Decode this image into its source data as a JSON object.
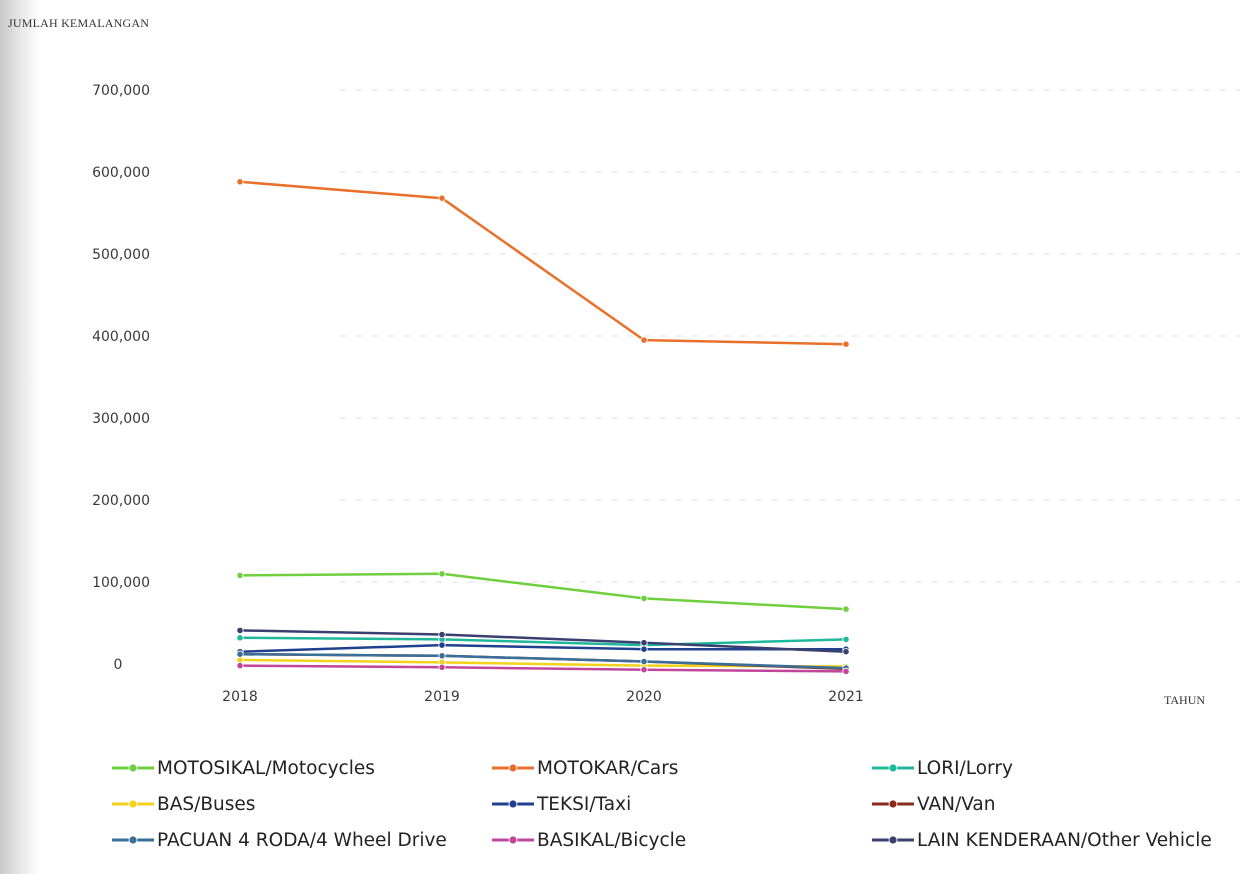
{
  "chart_data": {
    "type": "line",
    "ylabel": "JUMLAH KEMALANGAN",
    "xlabel": "TAHUN",
    "x": [
      "2018",
      "2019",
      "2020",
      "2021"
    ],
    "ylim": [
      0,
      700000
    ],
    "y_ticks": [
      "0",
      "100,000",
      "200,000",
      "300,000",
      "400,000",
      "500,000",
      "600,000",
      "700,000"
    ],
    "y_tick_values": [
      0,
      100000,
      200000,
      300000,
      400000,
      500000,
      600000,
      700000
    ],
    "grid": true,
    "legend_position": "bottom",
    "series": [
      {
        "name": "MOTOSIKAL/Motocycles",
        "color": "#6fcf3f",
        "values": [
          108000,
          110000,
          80000,
          67000
        ]
      },
      {
        "name": "MOTOKAR/Cars",
        "color": "#e8702a",
        "values": [
          588000,
          568000,
          395000,
          390000
        ]
      },
      {
        "name": "LORI/Lorry",
        "color": "#1fb89a",
        "values": [
          32000,
          30000,
          23000,
          30000
        ]
      },
      {
        "name": "BAS/Buses",
        "color": "#f2d21b",
        "values": [
          5000,
          2000,
          -2000,
          -3000
        ]
      },
      {
        "name": "TEKSI/Taxi",
        "color": "#1f3f8f",
        "values": [
          15000,
          23000,
          18000,
          18000
        ]
      },
      {
        "name": "VAN/Van",
        "color": "#8b2a1a",
        "values": [
          12000,
          10000,
          3000,
          -6000
        ]
      },
      {
        "name": "PACUAN 4 RODA/4 Wheel Drive",
        "color": "#3a6f9a",
        "values": [
          12000,
          10000,
          3000,
          -5000
        ]
      },
      {
        "name": "BASIKAL/Bicycle",
        "color": "#c2459c",
        "values": [
          -2000,
          -4000,
          -7000,
          -9000
        ]
      },
      {
        "name": "LAIN KENDERAAN/Other Vehicle",
        "color": "#3a3f6f",
        "values": [
          41000,
          36000,
          26000,
          15000
        ]
      }
    ]
  }
}
